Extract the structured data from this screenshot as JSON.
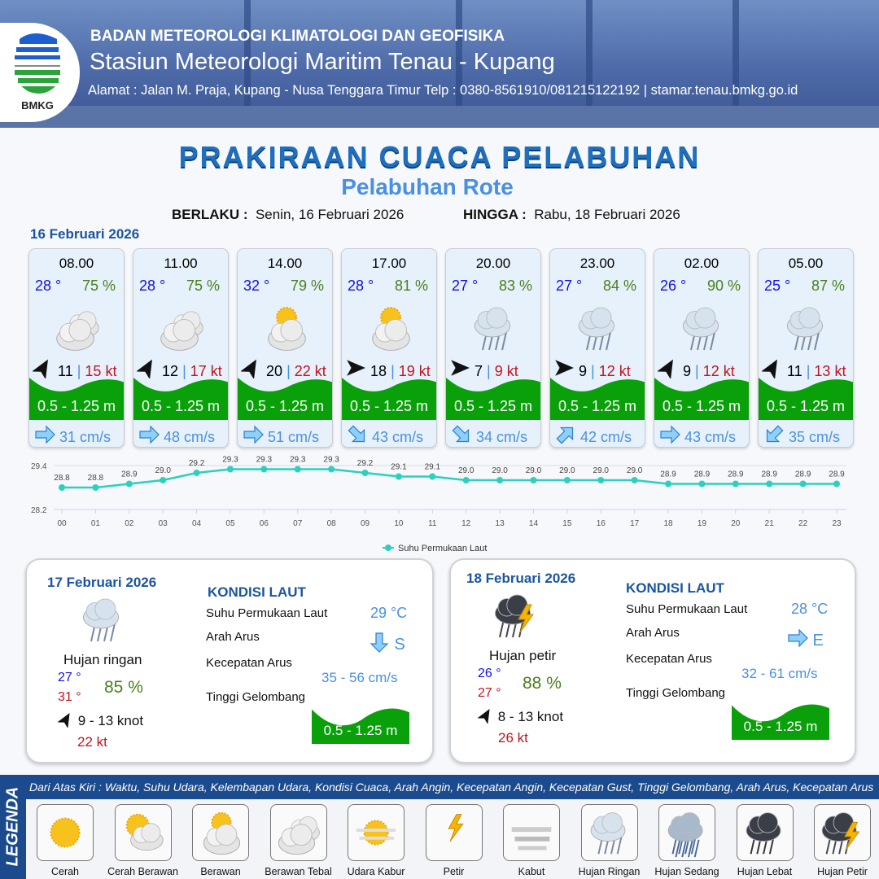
{
  "header": {
    "org": "BADAN METEOROLOGI KLIMATOLOGI DAN GEOFISIKA",
    "station": "Stasiun Meteorologi Maritim Tenau - Kupang",
    "address": "Alamat : Jalan M. Praja, Kupang - Nusa Tenggara Timur Telp : 0380-8561910/081215122192  | stamar.tenau.bmkg.go.id",
    "logo_text": "BMKG"
  },
  "title": "PRAKIRAAN CUACA PELABUHAN",
  "subtitle": "Pelabuhan Rote",
  "validity": {
    "from_label": "BERLAKU :",
    "from": "Senin, 16 Februari 2026",
    "to_label": "HINGGA :",
    "to": "Rabu, 18 Februari 2026"
  },
  "day1": {
    "date": "16 Februari 2026",
    "forecasts": [
      {
        "time": "08.00",
        "temp": "28 °",
        "hum": "75 %",
        "icon": "berawan-tebal",
        "wind_dir": "NE",
        "wind": "11",
        "gust": "15 kt",
        "wave": "0.5 - 1.25 m",
        "cur_dir": "E",
        "cur": "31 cm/s"
      },
      {
        "time": "11.00",
        "temp": "28 °",
        "hum": "75 %",
        "icon": "berawan-tebal",
        "wind_dir": "NE",
        "wind": "12",
        "gust": "17 kt",
        "wave": "0.5 - 1.25 m",
        "cur_dir": "E",
        "cur": "48 cm/s"
      },
      {
        "time": "14.00",
        "temp": "32 °",
        "hum": "79 %",
        "icon": "berawan",
        "wind_dir": "NE",
        "wind": "20",
        "gust": "22 kt",
        "wave": "0.5 - 1.25 m",
        "cur_dir": "E",
        "cur": "51 cm/s"
      },
      {
        "time": "17.00",
        "temp": "28 °",
        "hum": "81 %",
        "icon": "berawan",
        "wind_dir": "E",
        "wind": "18",
        "gust": "19 kt",
        "wave": "0.5 - 1.25 m",
        "cur_dir": "SE",
        "cur": "43 cm/s"
      },
      {
        "time": "20.00",
        "temp": "27 °",
        "hum": "83 %",
        "icon": "hujan-ringan",
        "wind_dir": "E",
        "wind": "7",
        "gust": "9 kt",
        "wave": "0.5 - 1.25 m",
        "cur_dir": "SE",
        "cur": "34 cm/s"
      },
      {
        "time": "23.00",
        "temp": "27 °",
        "hum": "84 %",
        "icon": "hujan-ringan",
        "wind_dir": "E",
        "wind": "9",
        "gust": "12 kt",
        "wave": "0.5 - 1.25 m",
        "cur_dir": "NE",
        "cur": "42 cm/s"
      },
      {
        "time": "02.00",
        "temp": "26 °",
        "hum": "90 %",
        "icon": "hujan-ringan",
        "wind_dir": "NE",
        "wind": "9",
        "gust": "12 kt",
        "wave": "0.5 - 1.25 m",
        "cur_dir": "E",
        "cur": "43 cm/s"
      },
      {
        "time": "05.00",
        "temp": "25 °",
        "hum": "87 %",
        "icon": "hujan-ringan",
        "wind_dir": "NE",
        "wind": "11",
        "gust": "13 kt",
        "wave": "0.5 - 1.25 m",
        "cur_dir": "SW",
        "cur": "35 cm/s"
      }
    ]
  },
  "chart_data": {
    "type": "line",
    "x": [
      "00",
      "01",
      "02",
      "03",
      "04",
      "05",
      "06",
      "07",
      "08",
      "09",
      "10",
      "11",
      "12",
      "13",
      "14",
      "15",
      "16",
      "17",
      "18",
      "19",
      "20",
      "21",
      "22",
      "23"
    ],
    "series": [
      {
        "name": "Suhu Permukaan Laut",
        "values": [
          28.8,
          28.8,
          28.9,
          29.0,
          29.2,
          29.3,
          29.3,
          29.3,
          29.3,
          29.2,
          29.1,
          29.1,
          29.0,
          29.0,
          29.0,
          29.0,
          29.0,
          29.0,
          28.9,
          28.9,
          28.9,
          28.9,
          28.9,
          28.9
        ]
      }
    ],
    "yticks": [
      "29.4",
      "28.2"
    ],
    "ylim": [
      28.2,
      29.4
    ],
    "color": "#2ccfc0",
    "legend": "bottom",
    "grid": true
  },
  "panels": [
    {
      "date": "17 Februari 2026",
      "icon": "hujan-ringan",
      "cond": "Hujan ringan",
      "tmin": "27 °",
      "tmax": "31 °",
      "hum": "85 %",
      "wind_dir": "NE",
      "wind": "9  - 13 knot",
      "gust": "22 kt",
      "kondisi": "KONDISI LAUT",
      "l_sst": "Suhu Permukaan Laut",
      "sst": "29 °C",
      "l_dir": "Arah Arus",
      "cur_dir": "S",
      "l_speed": "Kecepatan Arus",
      "speed": "35 - 56 cm/s",
      "l_wave": "Tinggi Gelombang",
      "wave": "0.5 - 1.25 m"
    },
    {
      "date": "18 Februari 2026",
      "icon": "hujan-petir",
      "cond": "Hujan petir",
      "tmin": "26 °",
      "tmax": "27 °",
      "hum": "88 %",
      "wind_dir": "NE",
      "wind": "8  - 13 knot",
      "gust": "26 kt",
      "kondisi": "KONDISI LAUT",
      "l_sst": "Suhu Permukaan Laut",
      "sst": "28 °C",
      "l_dir": "Arah Arus",
      "cur_dir": "E",
      "l_speed": "Kecepatan Arus",
      "speed": "32 - 61 cm/s",
      "l_wave": "Tinggi Gelombang",
      "wave": "0.5 - 1.25 m"
    }
  ],
  "legend": {
    "title": "LEGENDA",
    "desc": "Dari Atas Kiri : Waktu, Suhu Udara, Kelembapan Udara, Kondisi Cuaca, Arah Angin, Kecepatan Angin, Kecepatan Gust, Tinggi Gelombang, Arah Arus, Kecepatan Arus",
    "items": [
      {
        "label": "Cerah",
        "icon": "cerah"
      },
      {
        "label": "Cerah Berawan",
        "icon": "cerah-berawan"
      },
      {
        "label": "Berawan",
        "icon": "berawan"
      },
      {
        "label": "Berawan Tebal",
        "icon": "berawan-tebal"
      },
      {
        "label": "Udara Kabur",
        "icon": "udara-kabur"
      },
      {
        "label": "Petir",
        "icon": "petir"
      },
      {
        "label": "Kabut",
        "icon": "kabut"
      },
      {
        "label": "Hujan Ringan",
        "icon": "hujan-ringan"
      },
      {
        "label": "Hujan Sedang",
        "icon": "hujan-sedang"
      },
      {
        "label": "Hujan Lebat",
        "icon": "hujan-lebat"
      },
      {
        "label": "Hujan Petir",
        "icon": "hujan-petir"
      }
    ]
  },
  "colors": {
    "title": "#1f6fbf",
    "temp": "#1010ee",
    "hum": "#4a7f1a",
    "gust": "#c0141c",
    "wave": "#0aa00a",
    "current": "#4a90e2",
    "legend_bar": "#1c4b8d"
  }
}
